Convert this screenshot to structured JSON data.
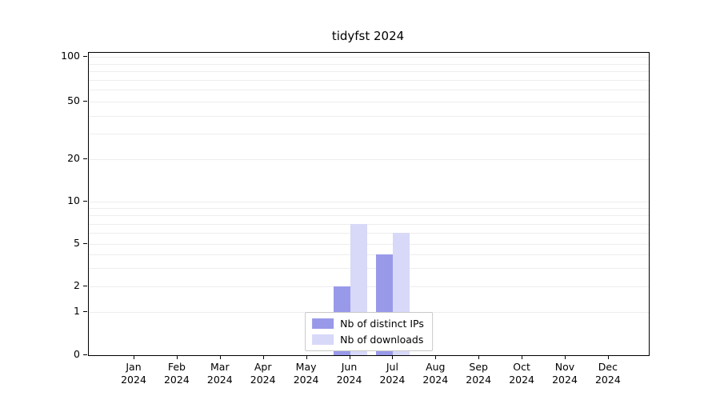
{
  "chart_data": {
    "type": "bar",
    "title": "tidyfst 2024",
    "categories": [
      "Jan",
      "Feb",
      "Mar",
      "Apr",
      "May",
      "Jun",
      "Jul",
      "Aug",
      "Sep",
      "Oct",
      "Nov",
      "Dec"
    ],
    "x_second_line": "2024",
    "series": [
      {
        "name": "Nb of distinct IPs",
        "color": "#9999ea",
        "values": [
          0,
          0,
          0,
          0,
          0,
          2,
          4,
          0,
          0,
          0,
          0,
          0
        ]
      },
      {
        "name": "Nb of downloads",
        "color": "#d8d8f8",
        "values": [
          0,
          0,
          0,
          0,
          0,
          7,
          6,
          0,
          0,
          0,
          0,
          0
        ]
      }
    ],
    "yticks": [
      0,
      1,
      2,
      5,
      10,
      20,
      50,
      100
    ],
    "minor_gridlines": [
      1,
      2,
      3,
      4,
      5,
      6,
      7,
      8,
      9,
      10,
      20,
      30,
      40,
      50,
      60,
      70,
      80,
      90,
      100
    ],
    "ylim": [
      0,
      100
    ],
    "scale": "symlog-like",
    "grid": "horizontal-minor",
    "legend_position": "bottom-center-inside"
  }
}
